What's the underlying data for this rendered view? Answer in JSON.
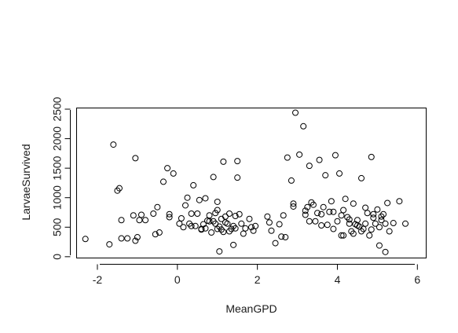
{
  "chart_data": {
    "type": "scatter",
    "title": "",
    "xlabel": "MeanGPD",
    "ylabel": "LarvaeSurvived",
    "xlim": [
      -2.52,
      6.22
    ],
    "ylim": [
      -22,
      2520
    ],
    "xticks": [
      -2,
      0,
      2,
      4,
      6
    ],
    "yticks": [
      0,
      500,
      1000,
      1500,
      2000,
      2500
    ],
    "xtick_labels": [
      "-2",
      "0",
      "2",
      "4",
      "6"
    ],
    "ytick_labels": [
      "0",
      "500",
      "1000",
      "1500",
      "2000",
      "2500"
    ],
    "grid": false,
    "legend": "none",
    "marker": "open-circle",
    "color": "#000000",
    "points": [
      [
        -2.3,
        300
      ],
      [
        -1.7,
        210
      ],
      [
        -1.6,
        1900
      ],
      [
        -1.5,
        1120
      ],
      [
        -1.45,
        1160
      ],
      [
        -1.4,
        620
      ],
      [
        -1.4,
        310
      ],
      [
        -1.25,
        310
      ],
      [
        -1.1,
        700
      ],
      [
        -1.05,
        1670
      ],
      [
        -1.05,
        270
      ],
      [
        -1.0,
        330
      ],
      [
        -0.95,
        620
      ],
      [
        -0.9,
        710
      ],
      [
        -0.8,
        620
      ],
      [
        -0.6,
        730
      ],
      [
        -0.55,
        380
      ],
      [
        -0.5,
        840
      ],
      [
        -0.45,
        410
      ],
      [
        -0.35,
        1270
      ],
      [
        -0.25,
        1500
      ],
      [
        -0.2,
        670
      ],
      [
        -0.2,
        720
      ],
      [
        -0.1,
        1410
      ],
      [
        0.05,
        560
      ],
      [
        0.1,
        650
      ],
      [
        0.15,
        500
      ],
      [
        0.2,
        870
      ],
      [
        0.25,
        1000
      ],
      [
        0.3,
        560
      ],
      [
        0.35,
        520
      ],
      [
        0.35,
        730
      ],
      [
        0.4,
        1210
      ],
      [
        0.45,
        520
      ],
      [
        0.5,
        730
      ],
      [
        0.55,
        960
      ],
      [
        0.6,
        460
      ],
      [
        0.6,
        470
      ],
      [
        0.65,
        550
      ],
      [
        0.7,
        990
      ],
      [
        0.7,
        480
      ],
      [
        0.75,
        610
      ],
      [
        0.8,
        700
      ],
      [
        0.85,
        410
      ],
      [
        0.9,
        1350
      ],
      [
        0.9,
        600
      ],
      [
        0.95,
        740
      ],
      [
        0.95,
        560
      ],
      [
        1.0,
        790
      ],
      [
        1.0,
        930
      ],
      [
        1.05,
        90
      ],
      [
        1.05,
        510
      ],
      [
        1.1,
        460
      ],
      [
        1.1,
        640
      ],
      [
        1.15,
        1610
      ],
      [
        1.15,
        420
      ],
      [
        1.2,
        680
      ],
      [
        1.25,
        560
      ],
      [
        1.3,
        430
      ],
      [
        1.3,
        730
      ],
      [
        1.35,
        470
      ],
      [
        1.4,
        200
      ],
      [
        1.4,
        520
      ],
      [
        1.45,
        690
      ],
      [
        1.5,
        1620
      ],
      [
        1.5,
        1340
      ],
      [
        1.55,
        720
      ],
      [
        1.6,
        560
      ],
      [
        1.65,
        390
      ],
      [
        1.7,
        480
      ],
      [
        1.8,
        640
      ],
      [
        1.85,
        500
      ],
      [
        1.9,
        440
      ],
      [
        1.95,
        520
      ],
      [
        2.25,
        680
      ],
      [
        2.3,
        580
      ],
      [
        2.35,
        440
      ],
      [
        2.45,
        230
      ],
      [
        2.55,
        550
      ],
      [
        2.6,
        340
      ],
      [
        2.65,
        700
      ],
      [
        2.7,
        330
      ],
      [
        2.75,
        1680
      ],
      [
        2.85,
        1290
      ],
      [
        2.9,
        900
      ],
      [
        2.95,
        2440
      ],
      [
        3.05,
        1730
      ],
      [
        3.15,
        2210
      ],
      [
        3.2,
        710
      ],
      [
        3.25,
        840
      ],
      [
        3.3,
        1540
      ],
      [
        3.3,
        600
      ],
      [
        3.35,
        920
      ],
      [
        3.4,
        880
      ],
      [
        3.45,
        600
      ],
      [
        3.5,
        740
      ],
      [
        3.55,
        1640
      ],
      [
        3.6,
        530
      ],
      [
        3.65,
        840
      ],
      [
        3.7,
        1380
      ],
      [
        3.75,
        540
      ],
      [
        3.8,
        760
      ],
      [
        3.85,
        940
      ],
      [
        3.9,
        470
      ],
      [
        3.95,
        1720
      ],
      [
        4.0,
        600
      ],
      [
        4.05,
        1410
      ],
      [
        4.1,
        360
      ],
      [
        4.15,
        790
      ],
      [
        4.2,
        980
      ],
      [
        4.25,
        670
      ],
      [
        4.3,
        560
      ],
      [
        4.35,
        430
      ],
      [
        4.4,
        900
      ],
      [
        4.45,
        550
      ],
      [
        4.5,
        620
      ],
      [
        4.55,
        510
      ],
      [
        4.6,
        1330
      ],
      [
        4.65,
        470
      ],
      [
        4.7,
        830
      ],
      [
        4.75,
        740
      ],
      [
        4.8,
        360
      ],
      [
        4.85,
        1690
      ],
      [
        4.9,
        660
      ],
      [
        4.95,
        560
      ],
      [
        5.0,
        800
      ],
      [
        5.05,
        190
      ],
      [
        5.1,
        620
      ],
      [
        5.15,
        720
      ],
      [
        5.2,
        80
      ],
      [
        5.25,
        910
      ],
      [
        5.3,
        430
      ],
      [
        5.4,
        570
      ],
      [
        5.55,
        940
      ],
      [
        5.7,
        560
      ],
      [
        0.8,
        600
      ],
      [
        1.0,
        470
      ],
      [
        1.2,
        580
      ],
      [
        1.45,
        480
      ],
      [
        2.9,
        850
      ],
      [
        3.2,
        780
      ],
      [
        3.6,
        720
      ],
      [
        3.9,
        760
      ],
      [
        4.1,
        700
      ],
      [
        4.3,
        630
      ],
      [
        4.5,
        530
      ],
      [
        4.7,
        560
      ],
      [
        4.9,
        720
      ],
      [
        5.1,
        680
      ],
      [
        4.15,
        360
      ],
      [
        4.4,
        390
      ],
      [
        4.6,
        430
      ],
      [
        4.85,
        460
      ],
      [
        5.05,
        500
      ],
      [
        5.2,
        560
      ]
    ]
  }
}
